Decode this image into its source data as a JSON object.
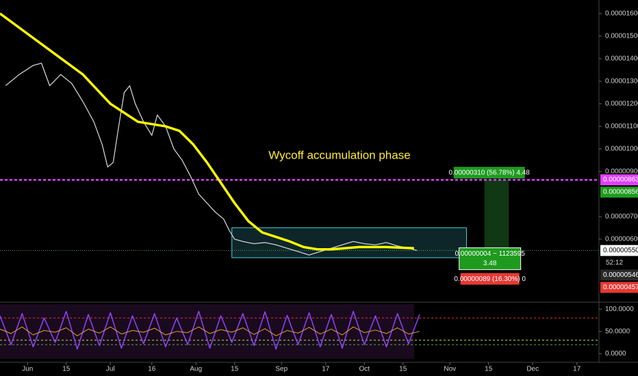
{
  "chart_data": [
    {
      "type": "line",
      "xlim": [
        -10,
        207
      ],
      "xticks": [
        {
          "value": 0,
          "label": "Jun"
        },
        {
          "value": 14,
          "label": "15"
        },
        {
          "value": 30,
          "label": "Jul"
        },
        {
          "value": 45,
          "label": "16"
        },
        {
          "value": 61,
          "label": "Aug"
        },
        {
          "value": 75,
          "label": "15"
        },
        {
          "value": 92,
          "label": "Sep"
        },
        {
          "value": 108,
          "label": "17"
        },
        {
          "value": 122,
          "label": "Oct"
        },
        {
          "value": 136,
          "label": "15"
        },
        {
          "value": 153,
          "label": "Nov"
        },
        {
          "value": 167,
          "label": "15"
        },
        {
          "value": 183,
          "label": "Dec"
        },
        {
          "value": 199,
          "label": "17"
        }
      ],
      "ylim": [
        3.27e-06,
        1.66e-05
      ],
      "yticks": [
        {
          "value": 1.6e-05,
          "label": "0.00001600"
        },
        {
          "value": 1.5e-05,
          "label": "0.00001500"
        },
        {
          "value": 1.4e-05,
          "label": "0.00001400"
        },
        {
          "value": 1.3e-05,
          "label": "0.00001300"
        },
        {
          "value": 1.2e-05,
          "label": "0.00001200"
        },
        {
          "value": 1.1e-05,
          "label": "0.00001100"
        },
        {
          "value": 1e-05,
          "label": "0.00001000"
        },
        {
          "value": 9e-06,
          "label": "0.00000900"
        },
        {
          "value": 7e-06,
          "label": "0.00000700"
        },
        {
          "value": 6e-06,
          "label": "0.00000600"
        }
      ],
      "series": [
        {
          "color": "#cfcfcf",
          "x": [
            -8,
            -3,
            2,
            5,
            8,
            12,
            16,
            20,
            24,
            27,
            29,
            31,
            33,
            35,
            37,
            39,
            42,
            45,
            47,
            50,
            53,
            56,
            59,
            62,
            65,
            68,
            71,
            73,
            75,
            78,
            82,
            86,
            90,
            94,
            98,
            102,
            106,
            110,
            114,
            118,
            122,
            126,
            130,
            134,
            138,
            141
          ],
          "values": [
            1.28e-05,
            1.33e-05,
            1.37e-05,
            1.38e-05,
            1.28e-05,
            1.33e-05,
            1.29e-05,
            1.21e-05,
            1.12e-05,
            1.02e-05,
            9.2e-06,
            9.4e-06,
            1.1e-05,
            1.25e-05,
            1.28e-05,
            1.2e-05,
            1.12e-05,
            1.06e-05,
            1.15e-05,
            1.1e-05,
            1e-05,
            9.5e-06,
            8.8e-06,
            8e-06,
            7.6e-06,
            7.2e-06,
            6.9e-06,
            6.4e-06,
            6e-06,
            5.9e-06,
            5.8e-06,
            5.85e-06,
            5.75e-06,
            5.6e-06,
            5.45e-06,
            5.3e-06,
            5.45e-06,
            5.6e-06,
            5.75e-06,
            5.9e-06,
            5.8e-06,
            5.75e-06,
            5.85e-06,
            5.7e-06,
            5.6e-06,
            5.5e-06
          ]
        },
        {
          "color": "#ffff00",
          "x": [
            -10,
            0,
            10,
            20,
            30,
            40,
            50,
            55,
            60,
            65,
            70,
            75,
            80,
            85,
            90,
            95,
            100,
            105,
            110,
            115,
            120,
            130,
            140
          ],
          "values": [
            1.6e-05,
            1.51e-05,
            1.42e-05,
            1.33e-05,
            1.2e-05,
            1.12e-05,
            1.1e-05,
            1.08e-05,
            1.02e-05,
            9.4e-06,
            8.5e-06,
            7.6e-06,
            6.8e-06,
            6.3e-06,
            6.1e-06,
            5.9e-06,
            5.65e-06,
            5.55e-06,
            5.55e-06,
            5.6e-06,
            5.65e-06,
            5.65e-06,
            5.6e-06
          ]
        }
      ],
      "annotation": {
        "text": "Wycoff accumulation phase",
        "x": 113,
        "y": 9.69e-06,
        "color": "#ffeb3b"
      },
      "range_box": {
        "x": [
          74,
          159
        ],
        "y": [
          5.18e-06,
          6.51e-06
        ],
        "color": "#4dd0e1"
      },
      "hline": {
        "value": 8.63e-06,
        "color": "#e040fb"
      },
      "current_line": {
        "value": 5.5e-06,
        "color": "#4caf50"
      },
      "position": {
        "x": [
          165.5,
          174.3
        ],
        "target": 8.63e-06,
        "entry": 5.53e-06,
        "target_label": "0.00000310 (56.78%) 4.48",
        "entry_label": "0.00000004 ~ 1123595",
        "entry_sub": "3.48",
        "stop_label": "0.00000089 (16.30%) 0"
      },
      "price_labels": [
        {
          "value": 8.63e-06,
          "label": "0.00000863",
          "color": "#e040fb"
        },
        {
          "value": 8.56e-06,
          "label": "0.00000856",
          "color": "#1e9b1e"
        },
        {
          "value": 5.5e-06,
          "label": "0.00000550",
          "color": "#ffffff"
        },
        {
          "value": 5.46e-06,
          "label": "0.00000546",
          "color": "#2a2a2a"
        },
        {
          "value": 4.57e-06,
          "label": "0.00000457",
          "color": "#e53935"
        }
      ],
      "countdown": "52:12"
    },
    {
      "type": "line",
      "ylim": [
        -12,
        111
      ],
      "yticks": [
        {
          "value": 100,
          "label": "100.0000"
        },
        {
          "value": 50,
          "label": "50.0000"
        },
        {
          "value": 0,
          "label": "0.0000"
        }
      ],
      "levels": [
        {
          "value": 80,
          "color": "#e53935"
        },
        {
          "value": 30,
          "color": "#cddc39"
        },
        {
          "value": 20,
          "color": "#4caf50"
        }
      ],
      "series": [
        {
          "color": "#8e44ff",
          "x": [
            -10,
            -6,
            -2,
            2,
            6,
            10,
            14,
            18,
            22,
            26,
            30,
            34,
            38,
            42,
            46,
            50,
            54,
            58,
            62,
            66,
            70,
            74,
            78,
            82,
            86,
            90,
            94,
            98,
            102,
            106,
            110,
            114,
            118,
            122,
            126,
            130,
            134,
            138,
            142
          ],
          "values": [
            85,
            20,
            90,
            15,
            80,
            25,
            95,
            10,
            88,
            18,
            92,
            12,
            85,
            22,
            90,
            15,
            80,
            20,
            95,
            12,
            85,
            25,
            90,
            18,
            94,
            10,
            86,
            20,
            92,
            15,
            88,
            12,
            95,
            20,
            85,
            15,
            90,
            22,
            88
          ]
        },
        {
          "color": "#e0a030",
          "x": [
            -10,
            -6,
            -2,
            2,
            6,
            10,
            14,
            18,
            22,
            26,
            30,
            34,
            38,
            42,
            46,
            50,
            54,
            58,
            62,
            66,
            70,
            74,
            78,
            82,
            86,
            90,
            94,
            98,
            102,
            106,
            110,
            114,
            118,
            122,
            126,
            130,
            134,
            138,
            142
          ],
          "values": [
            55,
            45,
            60,
            42,
            52,
            48,
            58,
            40,
            55,
            46,
            60,
            44,
            52,
            48,
            57,
            42,
            50,
            47,
            60,
            45,
            54,
            48,
            58,
            43,
            56,
            40,
            52,
            46,
            59,
            44,
            55,
            42,
            60,
            47,
            53,
            45,
            58,
            44,
            50
          ]
        }
      ]
    }
  ]
}
